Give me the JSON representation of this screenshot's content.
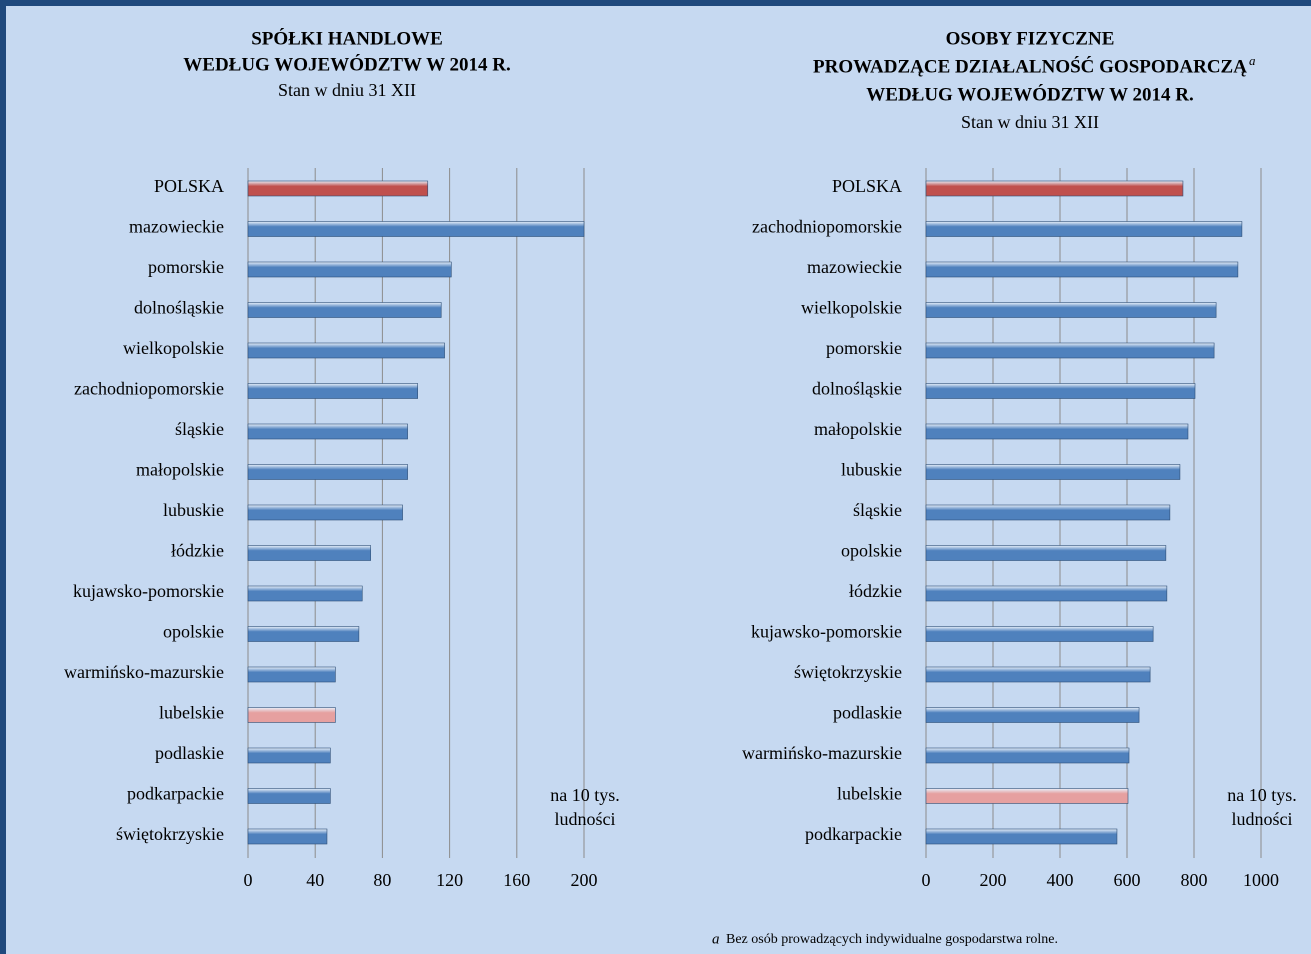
{
  "chart_data": [
    {
      "type": "bar",
      "orientation": "horizontal",
      "title": [
        "SPÓŁKI HANDLOWE",
        "WEDŁUG WOJEWÓDZTW  W 2014 R."
      ],
      "subtitle": "Stan w dniu 31 XII",
      "annotation": [
        "na 10 tys.",
        "ludności"
      ],
      "categories": [
        "POLSKA",
        "mazowieckie",
        "pomorskie",
        "dolnośląskie",
        "wielkopolskie",
        "zachodniopomorskie",
        "śląskie",
        "małopolskie",
        "lubuskie",
        "łódzkie",
        "kujawsko-pomorskie",
        "opolskie",
        "warmińsko-mazurskie",
        "lubelskie",
        "podlaskie",
        "podkarpackie",
        "świętokrzyskie"
      ],
      "values": [
        107,
        200,
        121,
        115,
        117,
        101,
        95,
        95,
        92,
        73,
        68,
        66,
        52,
        52,
        49,
        49,
        47
      ],
      "colors": [
        "#c0504d",
        "#4f81bd",
        "#4f81bd",
        "#4f81bd",
        "#4f81bd",
        "#4f81bd",
        "#4f81bd",
        "#4f81bd",
        "#4f81bd",
        "#4f81bd",
        "#4f81bd",
        "#4f81bd",
        "#4f81bd",
        "#e6a0a0",
        "#4f81bd",
        "#4f81bd",
        "#4f81bd"
      ],
      "xlim": [
        0,
        200
      ],
      "xticks": [
        0,
        40,
        80,
        120,
        160,
        200
      ],
      "grid": true
    },
    {
      "type": "bar",
      "orientation": "horizontal",
      "title": [
        "OSOBY FIZYCZNE",
        "PROWADZĄCE  DZIAŁALNOŚĆ  GOSPODARCZĄ",
        "WEDŁUG WOJEWÓDZTW  W 2014 R."
      ],
      "title_marker": "a",
      "subtitle": "Stan w dniu 31 XII",
      "annotation": [
        "na 10 tys.",
        "ludności"
      ],
      "categories": [
        "POLSKA",
        "zachodniopomorskie",
        "mazowieckie",
        "wielkopolskie",
        "pomorskie",
        "dolnośląskie",
        "małopolskie",
        "lubuskie",
        "śląskie",
        "opolskie",
        "łódzkie",
        "kujawsko-pomorskie",
        "świętokrzyskie",
        "podlaskie",
        "warmińsko-mazurskie",
        "lubelskie",
        "podkarpackie"
      ],
      "values": [
        767,
        943,
        931,
        866,
        860,
        803,
        782,
        758,
        728,
        716,
        719,
        678,
        669,
        636,
        606,
        603,
        570
      ],
      "colors": [
        "#c0504d",
        "#4f81bd",
        "#4f81bd",
        "#4f81bd",
        "#4f81bd",
        "#4f81bd",
        "#4f81bd",
        "#4f81bd",
        "#4f81bd",
        "#4f81bd",
        "#4f81bd",
        "#4f81bd",
        "#4f81bd",
        "#4f81bd",
        "#4f81bd",
        "#e6a0a0",
        "#4f81bd"
      ],
      "xlim": [
        0,
        1000
      ],
      "xticks": [
        0,
        200,
        400,
        600,
        800,
        1000
      ],
      "grid": true
    }
  ],
  "footnote_marker": "a",
  "footnote": "Bez osób prowadzących indywidualne  gospodarstwa rolne."
}
